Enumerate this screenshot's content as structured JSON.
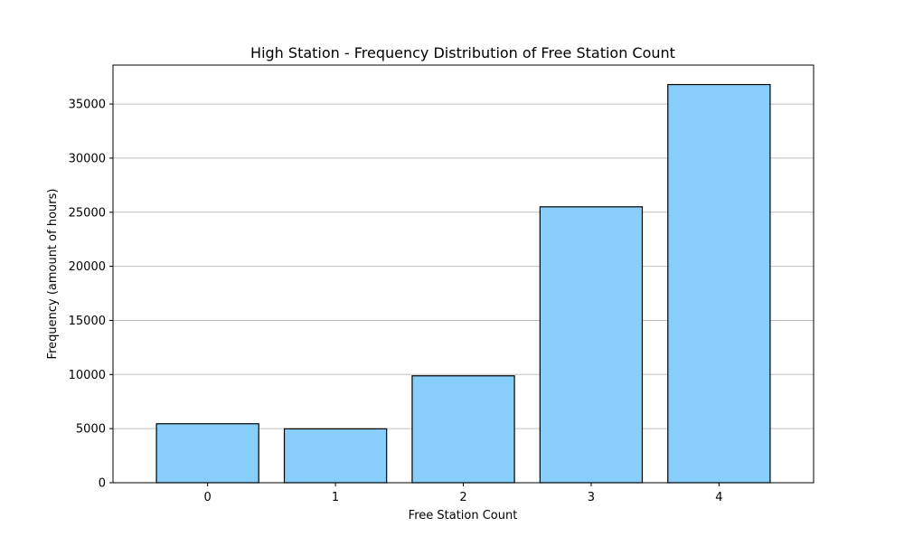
{
  "chart_data": {
    "type": "bar",
    "title": "High Station - Frequency Distribution of Free Station Count",
    "xlabel": "Free Station Count",
    "ylabel": "Frequency (amount of hours)",
    "categories": [
      "0",
      "1",
      "2",
      "3",
      "4"
    ],
    "values": [
      5450,
      4980,
      9880,
      25500,
      36800
    ],
    "ylim": [
      0,
      38600
    ],
    "yticks": [
      0,
      5000,
      10000,
      15000,
      20000,
      25000,
      30000,
      35000
    ],
    "ytick_labels": [
      "0",
      "5000",
      "10000",
      "15000",
      "20000",
      "25000",
      "30000",
      "35000"
    ],
    "grid": "y-axis only",
    "bar_color": "#87CEFA",
    "edge_color": "#000000"
  }
}
